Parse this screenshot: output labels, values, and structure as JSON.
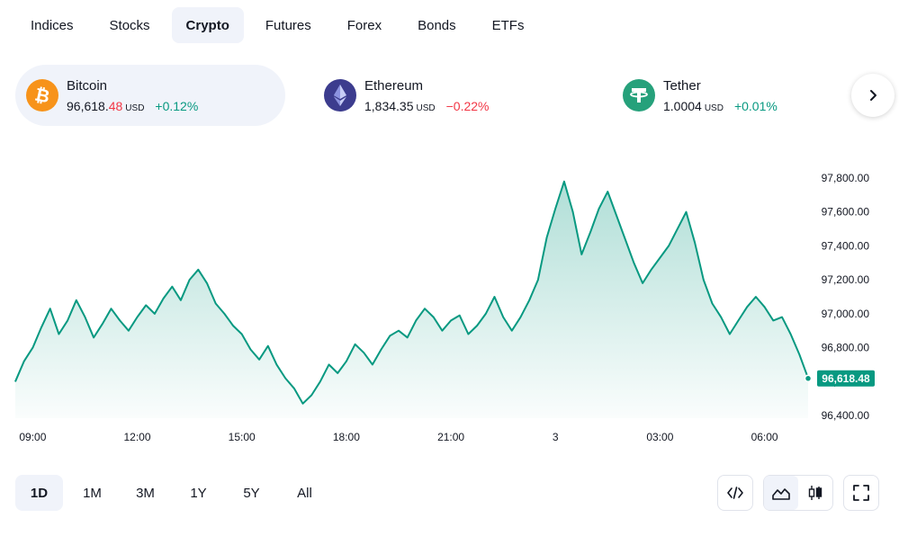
{
  "tabs": [
    "Indices",
    "Stocks",
    "Crypto",
    "Futures",
    "Forex",
    "Bonds",
    "ETFs"
  ],
  "active_tab": "Crypto",
  "cards": [
    {
      "name": "Bitcoin",
      "price_main": "96,618.",
      "price_frac": "48",
      "unit": "USD",
      "change": "+0.12%",
      "change_dir": "pos",
      "icon": "bitcoin-icon",
      "color": "#f7931a"
    },
    {
      "name": "Ethereum",
      "price_main": "1,834.35",
      "price_frac": "",
      "unit": "USD",
      "change": "−0.22%",
      "change_dir": "neg",
      "icon": "ethereum-icon",
      "color": "#3c3c8e"
    },
    {
      "name": "Tether",
      "price_main": "1.0004",
      "price_frac": "",
      "unit": "USD",
      "change": "+0.01%",
      "change_dir": "pos",
      "icon": "tether-icon",
      "color": "#26a17b"
    }
  ],
  "colors": {
    "line": "#089981",
    "negative": "#f23645",
    "active_bg": "#f0f3fa"
  },
  "chart_data": {
    "type": "area",
    "series_name": "Bitcoin",
    "x_ticks": [
      "09:00",
      "12:00",
      "15:00",
      "18:00",
      "21:00",
      "3",
      "03:00",
      "06:00"
    ],
    "y_ticks": [
      "97,800.00",
      "97,600.00",
      "97,400.00",
      "97,200.00",
      "97,000.00",
      "96,800.00",
      "96,600.00",
      "96,400.00"
    ],
    "ylim": [
      96400,
      97800
    ],
    "last_value": 96618.48,
    "last_label": "96,618.48",
    "grid": false,
    "points": [
      [
        "08:30",
        96600
      ],
      [
        "08:45",
        96720
      ],
      [
        "09:00",
        96800
      ],
      [
        "09:15",
        96920
      ],
      [
        "09:30",
        97030
      ],
      [
        "09:45",
        96880
      ],
      [
        "10:00",
        96960
      ],
      [
        "10:15",
        97080
      ],
      [
        "10:30",
        96980
      ],
      [
        "10:45",
        96860
      ],
      [
        "11:00",
        96940
      ],
      [
        "11:15",
        97030
      ],
      [
        "11:30",
        96960
      ],
      [
        "11:45",
        96900
      ],
      [
        "12:00",
        96980
      ],
      [
        "12:15",
        97050
      ],
      [
        "12:30",
        97000
      ],
      [
        "12:45",
        97090
      ],
      [
        "13:00",
        97160
      ],
      [
        "13:15",
        97080
      ],
      [
        "13:30",
        97200
      ],
      [
        "13:45",
        97260
      ],
      [
        "14:00",
        97180
      ],
      [
        "14:15",
        97060
      ],
      [
        "14:30",
        97000
      ],
      [
        "14:45",
        96930
      ],
      [
        "15:00",
        96880
      ],
      [
        "15:15",
        96790
      ],
      [
        "15:30",
        96730
      ],
      [
        "15:45",
        96810
      ],
      [
        "16:00",
        96700
      ],
      [
        "16:15",
        96620
      ],
      [
        "16:30",
        96560
      ],
      [
        "16:45",
        96470
      ],
      [
        "17:00",
        96520
      ],
      [
        "17:15",
        96600
      ],
      [
        "17:30",
        96700
      ],
      [
        "17:45",
        96650
      ],
      [
        "18:00",
        96720
      ],
      [
        "18:15",
        96820
      ],
      [
        "18:30",
        96770
      ],
      [
        "18:45",
        96700
      ],
      [
        "19:00",
        96790
      ],
      [
        "19:15",
        96870
      ],
      [
        "19:30",
        96900
      ],
      [
        "19:45",
        96860
      ],
      [
        "20:00",
        96960
      ],
      [
        "20:15",
        97030
      ],
      [
        "20:30",
        96980
      ],
      [
        "20:45",
        96900
      ],
      [
        "21:00",
        96960
      ],
      [
        "21:15",
        96990
      ],
      [
        "21:30",
        96880
      ],
      [
        "21:45",
        96930
      ],
      [
        "22:00",
        97000
      ],
      [
        "22:15",
        97100
      ],
      [
        "22:30",
        96980
      ],
      [
        "22:45",
        96900
      ],
      [
        "23:00",
        96980
      ],
      [
        "23:15",
        97080
      ],
      [
        "23:30",
        97200
      ],
      [
        "23:45",
        97450
      ],
      [
        "00:00",
        97620
      ],
      [
        "00:15",
        97780
      ],
      [
        "00:30",
        97600
      ],
      [
        "00:45",
        97350
      ],
      [
        "01:00",
        97480
      ],
      [
        "01:15",
        97620
      ],
      [
        "01:30",
        97720
      ],
      [
        "01:45",
        97580
      ],
      [
        "02:00",
        97440
      ],
      [
        "02:15",
        97300
      ],
      [
        "02:30",
        97180
      ],
      [
        "02:45",
        97260
      ],
      [
        "03:00",
        97330
      ],
      [
        "03:15",
        97400
      ],
      [
        "03:30",
        97500
      ],
      [
        "03:45",
        97600
      ],
      [
        "04:00",
        97420
      ],
      [
        "04:15",
        97200
      ],
      [
        "04:30",
        97060
      ],
      [
        "04:45",
        96980
      ],
      [
        "05:00",
        96880
      ],
      [
        "05:15",
        96960
      ],
      [
        "05:30",
        97040
      ],
      [
        "05:45",
        97100
      ],
      [
        "06:00",
        97040
      ],
      [
        "06:15",
        96960
      ],
      [
        "06:30",
        96980
      ],
      [
        "06:45",
        96880
      ],
      [
        "07:00",
        96760
      ],
      [
        "07:15",
        96620
      ]
    ]
  },
  "ranges": [
    "1D",
    "1M",
    "3M",
    "1Y",
    "5Y",
    "All"
  ],
  "active_range": "1D",
  "tools": [
    "embed-code-icon",
    "area-chart-icon",
    "candlestick-icon",
    "fullscreen-icon"
  ]
}
